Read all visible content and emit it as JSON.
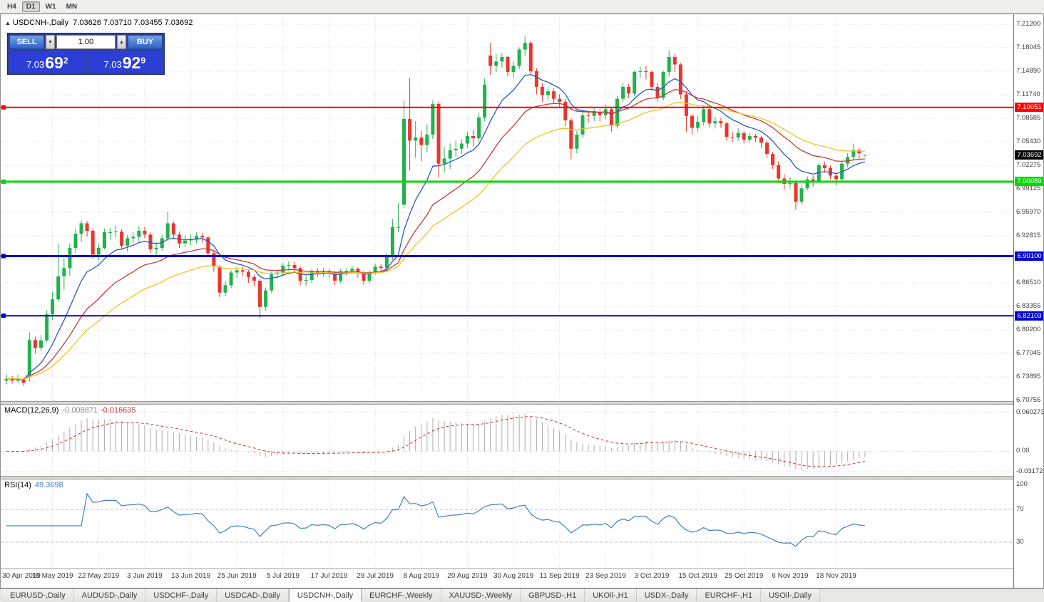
{
  "toolbar": {
    "timeframes": [
      "H4",
      "D1",
      "W1",
      "MN"
    ],
    "active": "D1"
  },
  "icons": {
    "collapse_arrow": "▲",
    "spinner_up": "▲",
    "spinner_down": "▼"
  },
  "chart": {
    "symbol_label": "USDCNH-,Daily",
    "ohlc": "7.03626 7.03710 7.03455 7.03692"
  },
  "one_click": {
    "sell_label": "SELL",
    "buy_label": "BUY",
    "volume": "1.00",
    "sell_price_small": "7.03",
    "sell_price_big": "69",
    "sell_price_sup": "2",
    "buy_price_small": "7.03",
    "buy_price_big": "92",
    "buy_price_sup": "9"
  },
  "indicators": {
    "macd_label": "MACD(12,26,9)",
    "macd_value": "-0.008871",
    "macd_signal_value": "-0.016635",
    "rsi_label": "RSI(14)",
    "rsi_value": "49.3698"
  },
  "colors": {
    "bull": "#21B24B",
    "bear": "#E8362D",
    "ma_fast": "#2B55C8",
    "ma_mid": "#C23B3B",
    "ma_slow": "#F0C420",
    "macd_hist": "#ABABAB",
    "macd_signal": "#CC3636",
    "rsi": "#4181C0",
    "grid": "#DCDCDC",
    "level_red": "#FF0000",
    "level_green": "#00D800",
    "level_blue": "#0000CD",
    "price_marker_bg": "#000000"
  },
  "tabs": {
    "active_index": 4,
    "items": [
      "EURUSD-,Daily",
      "AUDUSD-,Daily",
      "USDCHF-,Daily",
      "USDCAD-,Daily",
      "USDCNH-,Daily",
      "EURCHF-,Weekly",
      "XAUUSD-,Weekly",
      "GBPUSD-,H1",
      "UKOil-,H1",
      "USDX-,Daily",
      "EURCHF-,H1",
      "USOil-,Daily"
    ]
  },
  "chart_data": {
    "type": "candlestick",
    "symbol": "USDCNH",
    "timeframe": "Daily",
    "price_axis": {
      "min": 6.7066,
      "max": 7.2225,
      "ticks": [
        "7.21200",
        "7.18045",
        "7.14890",
        "7.11740",
        "7.08585",
        "7.05430",
        "7.02275",
        "6.99125",
        "6.95970",
        "6.92815",
        "6.89660",
        "6.86510",
        "6.83355",
        "6.80200",
        "6.77045",
        "6.73895",
        "6.70755"
      ]
    },
    "x_tick_every": 8,
    "x_tick_labels": [
      "30 Apr 2019",
      "10 May 2019",
      "22 May 2019",
      "3 Jun 2019",
      "13 Jun 2019",
      "25 Jun 2019",
      "5 Jul 2019",
      "17 Jul 2019",
      "29 Jul 2019",
      "8 Aug 2019",
      "20 Aug 2019",
      "30 Aug 2019",
      "11 Sep 2019",
      "23 Sep 2019",
      "3 Oct 2019",
      "15 Oct 2019",
      "25 Oct 2019",
      "6 Nov 2019",
      "18 Nov 2019"
    ],
    "overlays": [
      {
        "name": "ma-fast-blue",
        "period": 10
      },
      {
        "name": "ma-mid-red",
        "period": 21
      },
      {
        "name": "ma-slow-yellow",
        "period": 34
      }
    ],
    "levels": [
      {
        "label": "7.10051",
        "value": 7.10051,
        "color_key": "level_red",
        "width": 2
      },
      {
        "label": "7.00089",
        "value": 7.00089,
        "color_key": "level_green",
        "width": 3
      },
      {
        "label": "6.90100",
        "value": 6.901,
        "color_key": "level_blue",
        "width": 3
      },
      {
        "label": "6.82103",
        "value": 6.82103,
        "color_key": "level_blue",
        "width": 2
      }
    ],
    "current_price": {
      "label": "7.03692",
      "value": 7.03692
    },
    "macd": {
      "params": "12,26,9",
      "axis": {
        "min": -0.0383,
        "max": 0.0725,
        "ticks": [
          {
            "label": "0.060273",
            "v": 0.060273
          },
          {
            "label": "0.00",
            "v": 0
          },
          {
            "label": "-0.031725",
            "v": -0.031725
          }
        ]
      }
    },
    "rsi": {
      "period": 14,
      "axis": {
        "min": -2.2,
        "max": 106.5,
        "ticks": [
          {
            "label": "100",
            "v": 100
          },
          {
            "label": "70",
            "v": 70
          },
          {
            "label": "30",
            "v": 30
          }
        ],
        "levels": [
          70,
          30
        ]
      }
    },
    "candles_ohlc": [
      [
        6.734,
        6.742,
        6.729,
        6.7365
      ],
      [
        6.7365,
        6.74,
        6.73,
        6.734
      ],
      [
        6.734,
        6.742,
        6.731,
        6.7355
      ],
      [
        6.7355,
        6.738,
        6.727,
        6.731
      ],
      [
        6.741,
        6.799,
        6.733,
        6.7885
      ],
      [
        6.7885,
        6.793,
        6.77,
        6.778
      ],
      [
        6.778,
        6.795,
        6.774,
        6.788
      ],
      [
        6.788,
        6.828,
        6.786,
        6.823
      ],
      [
        6.823,
        6.853,
        6.815,
        6.843
      ],
      [
        6.843,
        6.918,
        6.84,
        6.874
      ],
      [
        6.874,
        6.898,
        6.856,
        6.885
      ],
      [
        6.885,
        6.918,
        6.875,
        6.912
      ],
      [
        6.912,
        6.938,
        6.905,
        6.931
      ],
      [
        6.931,
        6.949,
        6.92,
        6.945
      ],
      [
        6.945,
        6.948,
        6.927,
        6.935
      ],
      [
        6.935,
        6.938,
        6.898,
        6.903
      ],
      [
        6.903,
        6.918,
        6.895,
        6.912
      ],
      [
        6.912,
        6.938,
        6.91,
        6.933
      ],
      [
        6.933,
        6.939,
        6.923,
        6.933
      ],
      [
        6.933,
        6.942,
        6.926,
        6.934
      ],
      [
        6.934,
        6.937,
        6.91,
        6.915
      ],
      [
        6.915,
        6.929,
        6.907,
        6.925
      ],
      [
        6.925,
        6.933,
        6.918,
        6.927
      ],
      [
        6.927,
        6.941,
        6.92,
        6.935
      ],
      [
        6.935,
        6.94,
        6.925,
        6.93
      ],
      [
        6.93,
        6.933,
        6.905,
        6.91
      ],
      [
        6.91,
        6.92,
        6.902,
        6.912
      ],
      [
        6.912,
        6.93,
        6.908,
        6.925
      ],
      [
        6.925,
        6.961,
        6.921,
        6.945
      ],
      [
        6.945,
        6.948,
        6.925,
        6.93
      ],
      [
        6.93,
        6.934,
        6.912,
        6.918
      ],
      [
        6.918,
        6.929,
        6.913,
        6.922
      ],
      [
        6.922,
        6.93,
        6.916,
        6.923
      ],
      [
        6.923,
        6.933,
        6.918,
        6.928
      ],
      [
        6.928,
        6.932,
        6.919,
        6.926
      ],
      [
        6.926,
        6.928,
        6.9,
        6.905
      ],
      [
        6.905,
        6.909,
        6.88,
        6.887
      ],
      [
        6.887,
        6.889,
        6.846,
        6.852
      ],
      [
        6.852,
        6.868,
        6.847,
        6.862
      ],
      [
        6.862,
        6.882,
        6.858,
        6.879
      ],
      [
        6.879,
        6.887,
        6.872,
        6.882
      ],
      [
        6.882,
        6.887,
        6.874,
        6.88
      ],
      [
        6.88,
        6.883,
        6.865,
        6.873
      ],
      [
        6.873,
        6.876,
        6.86,
        6.868
      ],
      [
        6.868,
        6.87,
        6.8175,
        6.833
      ],
      [
        6.833,
        6.859,
        6.828,
        6.855
      ],
      [
        6.855,
        6.88,
        6.852,
        6.877
      ],
      [
        6.877,
        6.882,
        6.87,
        6.879
      ],
      [
        6.879,
        6.892,
        6.874,
        6.888
      ],
      [
        6.888,
        6.894,
        6.881,
        6.889
      ],
      [
        6.889,
        6.893,
        6.879,
        6.885
      ],
      [
        6.885,
        6.887,
        6.862,
        6.868
      ],
      [
        6.868,
        6.874,
        6.861,
        6.869
      ],
      [
        6.869,
        6.884,
        6.865,
        6.881
      ],
      [
        6.881,
        6.885,
        6.873,
        6.879
      ],
      [
        6.879,
        6.885,
        6.874,
        6.881
      ],
      [
        6.881,
        6.884,
        6.872,
        6.879
      ],
      [
        6.879,
        6.881,
        6.862,
        6.868
      ],
      [
        6.868,
        6.884,
        6.865,
        6.881
      ],
      [
        6.881,
        6.885,
        6.875,
        6.881
      ],
      [
        6.881,
        6.888,
        6.877,
        6.884
      ],
      [
        6.884,
        6.886,
        6.872,
        6.879
      ],
      [
        6.879,
        6.881,
        6.863,
        6.868
      ],
      [
        6.868,
        6.882,
        6.865,
        6.879
      ],
      [
        6.879,
        6.891,
        6.876,
        6.887
      ],
      [
        6.887,
        6.89,
        6.879,
        6.885
      ],
      [
        6.885,
        6.905,
        6.882,
        6.9
      ],
      [
        6.9,
        6.951,
        6.896,
        6.94
      ],
      [
        6.94,
        6.972,
        6.933,
        6.94
      ],
      [
        6.97,
        7.11,
        6.965,
        7.085
      ],
      [
        7.085,
        7.14,
        7.016,
        7.056
      ],
      [
        7.056,
        7.082,
        7.033,
        7.06
      ],
      [
        7.06,
        7.069,
        7.028,
        7.05
      ],
      [
        7.05,
        7.078,
        7.04,
        7.064
      ],
      [
        7.064,
        7.11,
        7.058,
        7.105
      ],
      [
        7.105,
        7.108,
        7.006,
        7.025
      ],
      [
        7.025,
        7.047,
        7.013,
        7.032
      ],
      [
        7.032,
        7.052,
        7.018,
        7.043
      ],
      [
        7.043,
        7.056,
        7.033,
        7.045
      ],
      [
        7.045,
        7.058,
        7.038,
        7.052
      ],
      [
        7.052,
        7.068,
        7.046,
        7.062
      ],
      [
        7.062,
        7.07,
        7.048,
        7.059
      ],
      [
        7.059,
        7.093,
        7.054,
        7.087
      ],
      [
        7.087,
        7.139,
        7.082,
        7.131
      ],
      [
        7.17,
        7.187,
        7.144,
        7.156
      ],
      [
        7.156,
        7.172,
        7.148,
        7.162
      ],
      [
        7.162,
        7.173,
        7.154,
        7.168
      ],
      [
        7.168,
        7.17,
        7.142,
        7.148
      ],
      [
        7.148,
        7.162,
        7.14,
        7.156
      ],
      [
        7.156,
        7.181,
        7.152,
        7.178
      ],
      [
        7.178,
        7.196,
        7.17,
        7.187
      ],
      [
        7.187,
        7.19,
        7.144,
        7.149
      ],
      [
        7.149,
        7.153,
        7.118,
        7.128
      ],
      [
        7.128,
        7.133,
        7.108,
        7.117
      ],
      [
        7.117,
        7.128,
        7.11,
        7.122
      ],
      [
        7.122,
        7.126,
        7.105,
        7.112
      ],
      [
        7.112,
        7.118,
        7.1,
        7.108
      ],
      [
        7.108,
        7.112,
        7.075,
        7.083
      ],
      [
        7.083,
        7.086,
        7.031,
        7.045
      ],
      [
        7.045,
        7.069,
        7.039,
        7.064
      ],
      [
        7.064,
        7.094,
        7.06,
        7.09
      ],
      [
        7.09,
        7.096,
        7.08,
        7.089
      ],
      [
        7.089,
        7.099,
        7.082,
        7.094
      ],
      [
        7.094,
        7.098,
        7.082,
        7.09
      ],
      [
        7.09,
        7.104,
        7.085,
        7.098
      ],
      [
        7.098,
        7.101,
        7.068,
        7.076
      ],
      [
        7.076,
        7.116,
        7.072,
        7.112
      ],
      [
        7.112,
        7.133,
        7.108,
        7.128
      ],
      [
        7.128,
        7.132,
        7.113,
        7.119
      ],
      [
        7.119,
        7.15,
        7.115,
        7.148
      ],
      [
        7.148,
        7.155,
        7.14,
        7.149
      ],
      [
        7.149,
        7.156,
        7.138,
        7.148
      ],
      [
        7.148,
        7.15,
        7.123,
        7.128
      ],
      [
        7.128,
        7.133,
        7.108,
        7.113
      ],
      [
        7.113,
        7.15,
        7.11,
        7.148
      ],
      [
        7.148,
        7.177,
        7.142,
        7.168
      ],
      [
        7.168,
        7.172,
        7.148,
        7.158
      ],
      [
        7.158,
        7.16,
        7.112,
        7.118
      ],
      [
        7.118,
        7.123,
        7.068,
        7.089
      ],
      [
        7.089,
        7.092,
        7.064,
        7.073
      ],
      [
        7.073,
        7.089,
        7.068,
        7.081
      ],
      [
        7.081,
        7.102,
        7.076,
        7.098
      ],
      [
        7.098,
        7.101,
        7.074,
        7.079
      ],
      [
        7.079,
        7.088,
        7.072,
        7.082
      ],
      [
        7.082,
        7.086,
        7.073,
        7.079
      ],
      [
        7.079,
        7.081,
        7.056,
        7.061
      ],
      [
        7.061,
        7.068,
        7.054,
        7.06
      ],
      [
        7.06,
        7.072,
        7.056,
        7.066
      ],
      [
        7.066,
        7.069,
        7.052,
        7.057
      ],
      [
        7.057,
        7.066,
        7.053,
        7.062
      ],
      [
        7.062,
        7.065,
        7.054,
        7.06
      ],
      [
        7.06,
        7.062,
        7.046,
        7.053
      ],
      [
        7.053,
        7.056,
        7.033,
        7.038
      ],
      [
        7.038,
        7.041,
        7.018,
        7.023
      ],
      [
        7.023,
        7.028,
        7.002,
        7.005
      ],
      [
        7.005,
        7.011,
        6.99,
        6.998
      ],
      [
        6.998,
        7.007,
        6.992,
        6.999
      ],
      [
        6.999,
        7.001,
        6.963,
        6.974
      ],
      [
        6.974,
        6.996,
        6.97,
        6.992
      ],
      [
        6.992,
        7.008,
        6.989,
        7.004
      ],
      [
        7.004,
        7.009,
        6.994,
        7.002
      ],
      [
        7.002,
        7.026,
        6.999,
        7.023
      ],
      [
        7.023,
        7.028,
        7.013,
        7.019
      ],
      [
        7.019,
        7.023,
        7.004,
        7.009
      ],
      [
        7.009,
        7.013,
        6.996,
        7.004
      ],
      [
        7.004,
        7.028,
        7.001,
        7.025
      ],
      [
        7.025,
        7.039,
        7.02,
        7.034
      ],
      [
        7.034,
        7.052,
        7.029,
        7.043
      ],
      [
        7.043,
        7.046,
        7.03,
        7.039
      ],
      [
        7.0363,
        7.0371,
        7.0346,
        7.0369
      ]
    ]
  }
}
